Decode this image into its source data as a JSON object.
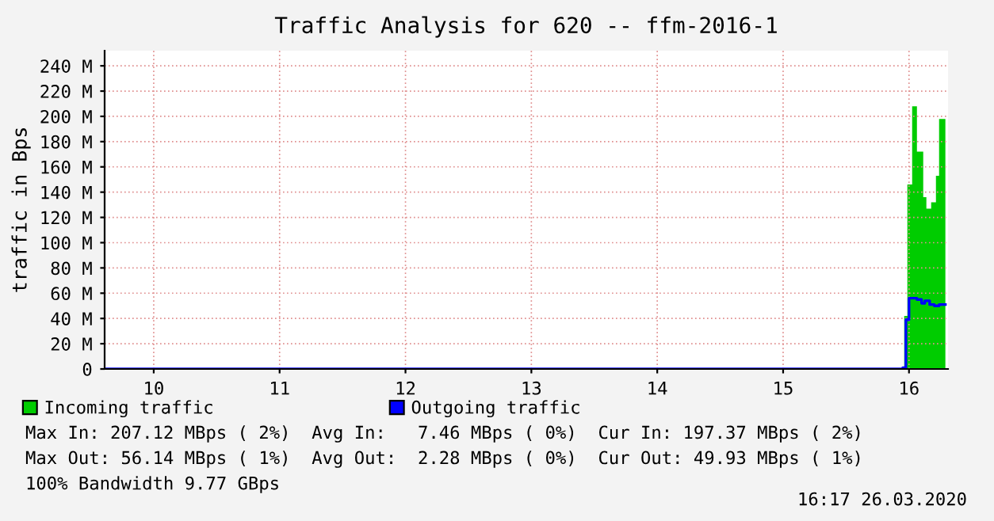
{
  "chart_data": {
    "type": "step",
    "title": "Traffic Analysis for 620 -- ffm-2016-1",
    "ylabel": "traffic in Bps",
    "series": [
      {
        "name": "Incoming traffic",
        "type": "area",
        "color": "#00cc00",
        "x": [
          9.61,
          15.962,
          15.987,
          16.025,
          16.063,
          16.113,
          16.138,
          16.176,
          16.214,
          16.239,
          16.289
        ],
        "values": [
          0,
          42,
          146,
          208,
          172,
          136,
          127,
          132,
          153,
          198,
          198
        ]
      },
      {
        "name": "Outgoing traffic",
        "color": "#0000ff",
        "x": [
          9.61,
          15.95,
          15.975,
          16.0,
          16.063,
          16.1,
          16.126,
          16.164,
          16.201,
          16.239,
          16.289
        ],
        "values": [
          0,
          1,
          39,
          56,
          55,
          52,
          54,
          51,
          50,
          51,
          51
        ]
      }
    ],
    "xlim": [
      9.61,
      16.31
    ],
    "xticks": [
      10,
      11,
      12,
      13,
      14,
      15,
      16
    ],
    "ylim": [
      0,
      252
    ],
    "yticks": [
      0,
      {
        "value": 20,
        "label": "20 M"
      },
      {
        "value": 40,
        "label": "40 M"
      },
      {
        "value": 60,
        "label": "60 M"
      },
      {
        "value": 80,
        "label": "80 M"
      },
      {
        "value": 100,
        "label": "100 M"
      },
      {
        "value": 120,
        "label": "120 M"
      },
      {
        "value": 140,
        "label": "140 M"
      },
      {
        "value": 160,
        "label": "160 M"
      },
      {
        "value": 180,
        "label": "180 M"
      },
      {
        "value": 200,
        "label": "200 M"
      },
      {
        "value": 220,
        "label": "220 M"
      },
      {
        "value": 240,
        "label": "240 M"
      }
    ],
    "grid": true,
    "legend": "bottom",
    "annotations": [
      "Max In: 207.12 MBps ( 2%)  Avg In:   7.46 MBps ( 0%)  Cur In: 197.37 MBps ( 2%)",
      "Max Out: 56.14 MBps ( 1%)  Avg Out:  2.28 MBps ( 0%)  Cur Out: 49.93 MBps ( 1%)",
      "100% Bandwidth 9.77 GBps",
      "16:17 26.03.2020"
    ]
  }
}
